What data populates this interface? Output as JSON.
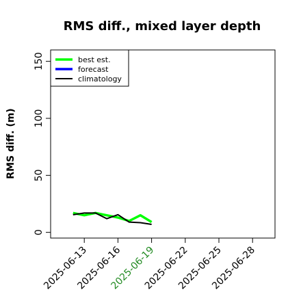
{
  "chart_data": {
    "type": "line",
    "title": "RMS diff., mixed layer depth",
    "xlabel": "",
    "ylabel": "RMS diff. (m)",
    "ylim": [
      -5,
      160
    ],
    "yticks": [
      0,
      50,
      100,
      150
    ],
    "xlim": [
      "2025-06-10",
      "2025-06-30"
    ],
    "xticks": [
      "2025-06-13",
      "2025-06-16",
      "2025-06-19",
      "2025-06-22",
      "2025-06-25",
      "2025-06-28"
    ],
    "highlighted_xtick": "2025-06-19",
    "highlight_color": "#228b22",
    "grid": false,
    "legend": "top-left",
    "series": [
      {
        "name": "best est.",
        "color": "#00ff00",
        "x": [
          "2025-06-12",
          "2025-06-13",
          "2025-06-14",
          "2025-06-15",
          "2025-06-16",
          "2025-06-17",
          "2025-06-18",
          "2025-06-19"
        ],
        "values": [
          17,
          15,
          17,
          15,
          13,
          10,
          15,
          9
        ]
      },
      {
        "name": "forecast",
        "color": "#0000ff",
        "x": [],
        "values": []
      },
      {
        "name": "climatology",
        "color": "#000000",
        "x": [
          "2025-06-12",
          "2025-06-13",
          "2025-06-14",
          "2025-06-15",
          "2025-06-16",
          "2025-06-17",
          "2025-06-18",
          "2025-06-19"
        ],
        "values": [
          15.5,
          17,
          17,
          12,
          15.5,
          9,
          8.5,
          7
        ]
      }
    ]
  }
}
